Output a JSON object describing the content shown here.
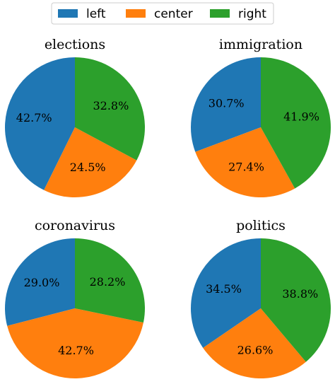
{
  "legend": [
    {
      "label": "left",
      "color": "#1f77b4"
    },
    {
      "label": "center",
      "color": "#ff7f0e"
    },
    {
      "label": "right",
      "color": "#2ca02c"
    }
  ],
  "chart_data": [
    {
      "type": "pie",
      "title": "elections",
      "labels": [
        "left",
        "center",
        "right"
      ],
      "values": [
        42.7,
        24.5,
        32.8
      ],
      "value_labels": [
        "42.7%",
        "24.5%",
        "32.8%"
      ],
      "start_angle": 90,
      "direction": "counterclockwise"
    },
    {
      "type": "pie",
      "title": "immigration",
      "labels": [
        "left",
        "center",
        "right"
      ],
      "values": [
        30.7,
        27.4,
        41.9
      ],
      "value_labels": [
        "30.7%",
        "27.4%",
        "41.9%"
      ],
      "start_angle": 90,
      "direction": "counterclockwise"
    },
    {
      "type": "pie",
      "title": "coronavirus",
      "labels": [
        "left",
        "center",
        "right"
      ],
      "values": [
        29.0,
        42.7,
        28.2
      ],
      "value_labels": [
        "29.0%",
        "42.7%",
        "28.2%"
      ],
      "start_angle": 90,
      "direction": "counterclockwise"
    },
    {
      "type": "pie",
      "title": "politics",
      "labels": [
        "left",
        "center",
        "right"
      ],
      "values": [
        34.5,
        26.6,
        38.8
      ],
      "value_labels": [
        "34.5%",
        "26.6%",
        "38.8%"
      ],
      "start_angle": 90,
      "direction": "counterclockwise"
    }
  ]
}
